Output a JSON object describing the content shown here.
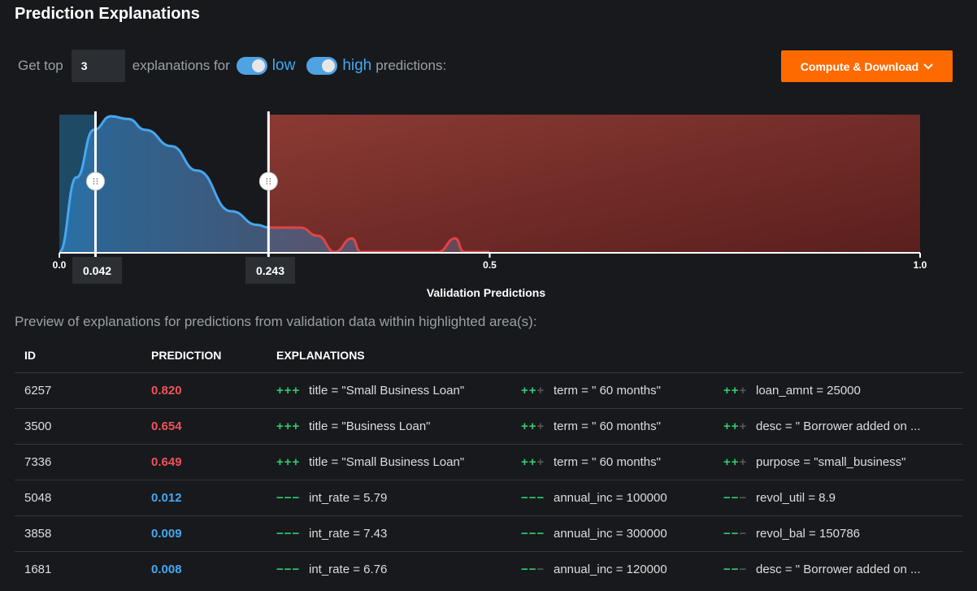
{
  "header": {
    "title": "Prediction Explanations"
  },
  "controls": {
    "get_top": "Get top",
    "top_value": "3",
    "explanations_for": "explanations for",
    "low_label": "low",
    "high_label": "high",
    "predictions": "predictions:",
    "low_enabled": true,
    "high_enabled": true
  },
  "compute_button": {
    "label": "Compute & Download"
  },
  "chart": {
    "low_threshold": "0.042",
    "high_threshold": "0.243",
    "xlabel": "Validation Predictions",
    "ticks": [
      "0.0",
      "0.5",
      "1.0"
    ]
  },
  "chart_data": {
    "type": "area",
    "xlabel": "Validation Predictions",
    "xlim": [
      0,
      1
    ],
    "x_ticks": [
      0.0,
      0.5,
      1.0
    ],
    "thresholds": {
      "low": 0.042,
      "high": 0.243
    },
    "density": {
      "x": [
        0.0,
        0.02,
        0.04,
        0.06,
        0.08,
        0.1,
        0.13,
        0.16,
        0.2,
        0.23,
        0.243,
        0.28,
        0.3,
        0.32,
        0.34,
        0.35,
        0.37,
        0.38,
        0.4,
        0.44,
        0.46,
        0.47,
        0.5
      ],
      "y": [
        0.0,
        0.55,
        0.9,
        1.0,
        0.98,
        0.9,
        0.78,
        0.6,
        0.3,
        0.2,
        0.18,
        0.18,
        0.12,
        0.0,
        0.1,
        0.0,
        0.0,
        0.0,
        0.0,
        0.0,
        0.1,
        0.0,
        0.0
      ]
    },
    "colors": {
      "low": "#46a7f0",
      "high": "#e0444a"
    }
  },
  "preview_text": "Preview of explanations for predictions from validation data within highlighted area(s):",
  "table": {
    "headers": [
      "ID",
      "PREDICTION",
      "EXPLANATIONS"
    ],
    "rows": [
      {
        "id": "6257",
        "pred": "0.820",
        "type": "high",
        "e1": {
          "sign": "+++",
          "text": "title = \"Small Business Loan\""
        },
        "e2": {
          "sign": "++",
          "fade": "+",
          "text": "term = \" 60 months\""
        },
        "e3": {
          "sign": "++",
          "fade": "+",
          "text": "loan_amnt = 25000"
        }
      },
      {
        "id": "3500",
        "pred": "0.654",
        "type": "high",
        "e1": {
          "sign": "+++",
          "text": "title = \"Business Loan\""
        },
        "e2": {
          "sign": "++",
          "fade": "+",
          "text": "term = \" 60 months\""
        },
        "e3": {
          "sign": "++",
          "fade": "+",
          "text": "desc = \" Borrower added on ..."
        }
      },
      {
        "id": "7336",
        "pred": "0.649",
        "type": "high",
        "e1": {
          "sign": "+++",
          "text": "title = \"Small Business Loan\""
        },
        "e2": {
          "sign": "++",
          "fade": "+",
          "text": "term = \" 60 months\""
        },
        "e3": {
          "sign": "++",
          "fade": "+",
          "text": "purpose = \"small_business\""
        }
      },
      {
        "id": "5048",
        "pred": "0.012",
        "type": "low",
        "e1": {
          "sign": "−−−",
          "text": "int_rate = 5.79"
        },
        "e2": {
          "sign": "−−−",
          "text": "annual_inc = 100000"
        },
        "e3": {
          "sign": "−−",
          "fade": "−",
          "text": "revol_util = 8.9"
        }
      },
      {
        "id": "3858",
        "pred": "0.009",
        "type": "low",
        "e1": {
          "sign": "−−−",
          "text": "int_rate = 7.43"
        },
        "e2": {
          "sign": "−−−",
          "text": "annual_inc = 300000"
        },
        "e3": {
          "sign": "−−",
          "fade": "−",
          "text": "revol_bal = 150786"
        }
      },
      {
        "id": "1681",
        "pred": "0.008",
        "type": "low",
        "e1": {
          "sign": "−−−",
          "text": "int_rate = 6.76"
        },
        "e2": {
          "sign": "−−",
          "fade": "−",
          "text": "annual_inc = 120000"
        },
        "e3": {
          "sign": "−−",
          "fade": "−",
          "text": "desc = \" Borrower added on ..."
        }
      }
    ]
  }
}
